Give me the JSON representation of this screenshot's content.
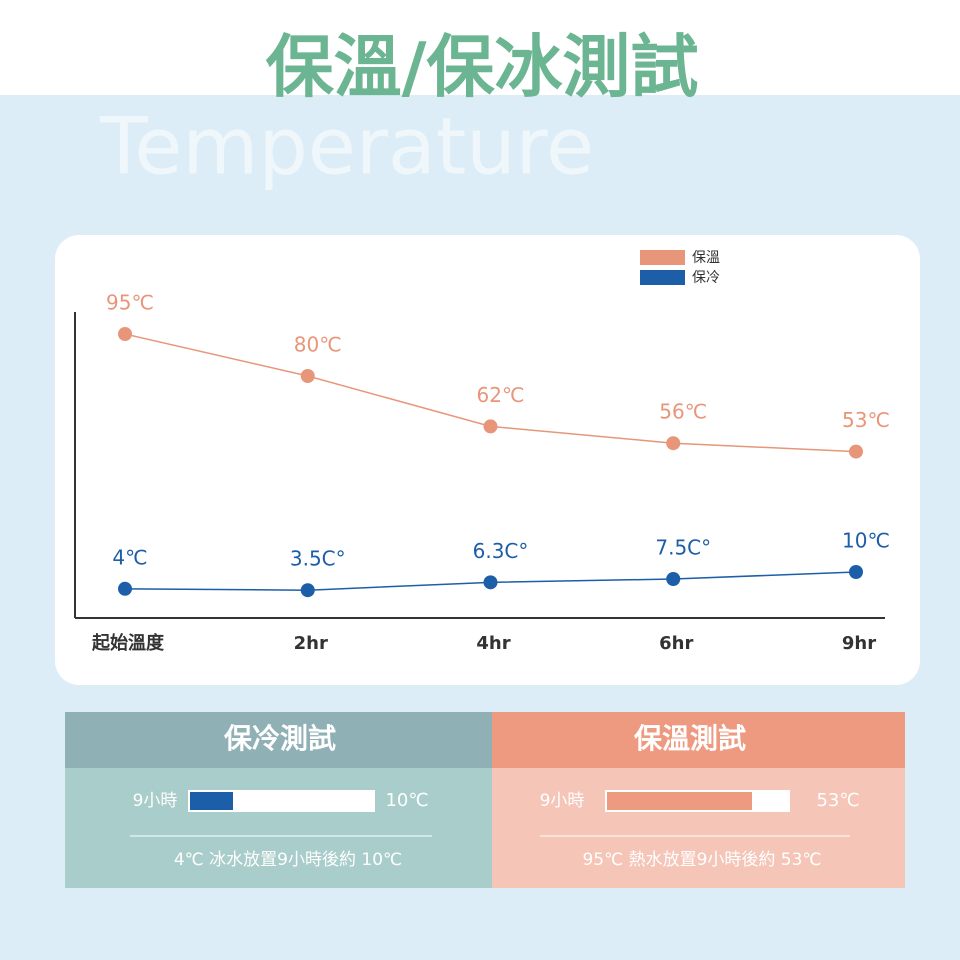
{
  "header": {
    "title": "保溫/保冰測試",
    "subtitle": "Temperature"
  },
  "chart_data": {
    "type": "line",
    "categories": [
      "起始溫度",
      "2hr",
      "4hr",
      "6hr",
      "9hr"
    ],
    "series": [
      {
        "name": "保溫",
        "color": "#e8967a",
        "values": [
          95,
          80,
          62,
          56,
          53
        ],
        "value_labels": [
          "95℃",
          "80℃",
          "62℃",
          "56℃",
          "53℃"
        ]
      },
      {
        "name": "保冷",
        "color": "#1d5ea8",
        "values": [
          4,
          3.5,
          6.3,
          7.5,
          10
        ],
        "value_labels": [
          "4℃",
          "3.5C°",
          "6.3C°",
          "7.5C°",
          "10℃"
        ]
      }
    ],
    "ylim": [
      0,
      100
    ],
    "legend": "upper right"
  },
  "panels": [
    {
      "title": "保冷測試",
      "duration": "9小時",
      "result": "10℃",
      "note": "4℃ 冰水放置9小時後約 10℃"
    },
    {
      "title": "保溫測試",
      "duration": "9小時",
      "result": "53℃",
      "note": "95℃ 熱水放置9小時後約 53℃"
    }
  ]
}
